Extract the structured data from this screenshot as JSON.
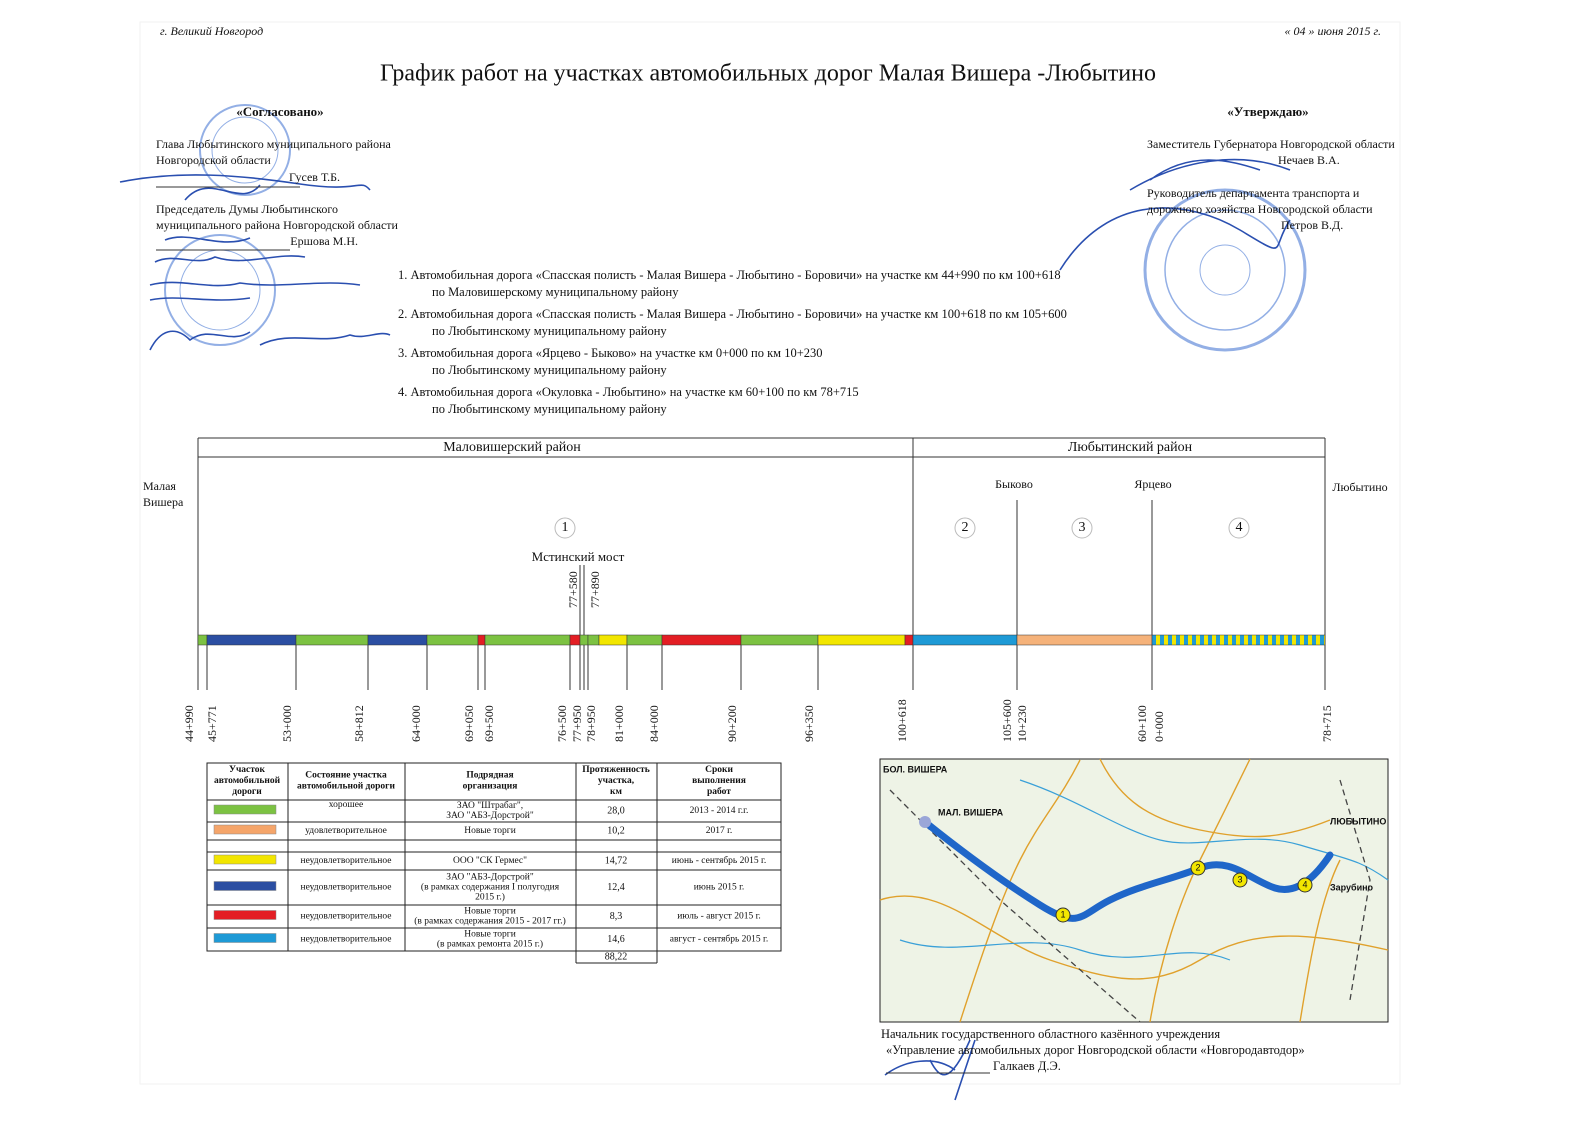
{
  "header": {
    "city": "г. Великий Новгород",
    "date": "« 04 » июня 2015 г.",
    "title": "График работ на участках автомобильных дорог Малая Вишера -Любытино"
  },
  "approved_left": {
    "heading": "«Согласовано»",
    "lines": [
      "Глава Любытинского муниципального района",
      "Новгородской области",
      "Гусев Т.Б.",
      "Председатель Думы Любытинского",
      "муниципального района Новгородской области",
      "Ершова М.Н."
    ]
  },
  "approved_right": {
    "heading": "«Утверждаю»",
    "lines": [
      "Заместитель Губернатора Новгородской области",
      "Нечаев В.А.",
      "Руководитель департамента транспорта и",
      "дорожного хозяйства Новгородской области",
      "Петров В.Д."
    ]
  },
  "roads": [
    [
      "1. Автомобильная дорога «Спасская полисть - Малая Вишера - Любытино - Боровичи» на участке  км 44+990 по  км 100+618",
      "по Маловишерскому муниципальному району"
    ],
    [
      "2. Автомобильная дорога  «Спасская полисть - Малая Вишера - Любытино - Боровичи» на участке  км 100+618 по  км 105+600",
      "по Любытинскому муниципальному району"
    ],
    [
      "3. Автомобильная дорога  «Ярцево - Быково» на участке  км  0+000  по км  10+230",
      "по Любытинскому муниципальному району"
    ],
    [
      "4. Автомобильная дорога  «Окуловка - Любытино» на участке  км 60+100 по км  78+715",
      "по Любытинскому муниципальному району"
    ]
  ],
  "diagram": {
    "districts": [
      "Маловишерский район",
      "Любытинский район"
    ],
    "start_place": [
      "Малая",
      "Вишера"
    ],
    "places": [
      "Быково",
      "Ярцево",
      "Любытино"
    ],
    "sections": [
      "1",
      "2",
      "3",
      "4"
    ],
    "bridge": "Мстинский мост",
    "bridge_km": [
      "77+580",
      "77+890"
    ],
    "km": [
      "44+990",
      "45+771",
      "53+000",
      "58+812",
      "64+000",
      "69+050",
      "69+500",
      "76+500",
      "77+950",
      "78+950",
      "81+000",
      "84+000",
      "90+200",
      "96+350",
      "100+618",
      "105+600",
      "10+230",
      "60+100",
      "0+000",
      "78+715"
    ]
  },
  "table": {
    "headers": [
      [
        "Участок",
        "автомобильной",
        "дороги"
      ],
      [
        "Состояние участка",
        "автомобильной дороги"
      ],
      [
        "Подрядная",
        "организация"
      ],
      [
        "Протяженность",
        "участка,",
        "км"
      ],
      [
        "Сроки",
        "выполнения",
        "работ"
      ]
    ],
    "rows": [
      {
        "color": "#7cc242",
        "state": "хорошее",
        "contractor": [
          "ЗАО \"Штрабаг\",",
          "ЗАО \"АБЗ-Дорстрой\""
        ],
        "length": "28,0",
        "term": "2013 - 2014 г.г."
      },
      {
        "color": "#f5a56a",
        "state": "удовлетворительное",
        "contractor": [
          "Новые торги"
        ],
        "length": "10,2",
        "term": "2017 г."
      },
      {
        "color": "#f2e600",
        "state": "неудовлетворительное",
        "contractor": [
          "ООО \"СК Гермес\""
        ],
        "length": "14,72",
        "term": "июнь - сентябрь  2015 г."
      },
      {
        "color": "#2b4ea2",
        "state": "неудовлетворительное",
        "contractor": [
          "ЗАО \"АБЗ-Дорстрой\"",
          "(в рамках содержания I полугодия",
          "2015 г.)"
        ],
        "length": "12,4",
        "term": "июнь 2015 г."
      },
      {
        "color": "#e31e24",
        "state": "неудовлетворительное",
        "contractor": [
          "Новые торги",
          "(в рамках содержания 2015 - 2017 гг.)"
        ],
        "length": "8,3",
        "term": "июль - август 2015 г."
      },
      {
        "color": "#1e9ad6",
        "state": "неудовлетворительное",
        "contractor": [
          "Новые торги",
          "(в рамках ремонта 2015 г.)"
        ],
        "length": "14,6",
        "term": "август - сентябрь 2015 г."
      }
    ],
    "total": "88,22"
  },
  "map": {
    "labels": [
      "БОЛ. ВИШЕРА",
      "МАЛ. ВИШЕРА",
      "ЛЮБЫТИНО",
      "Зарубино"
    ],
    "markers": [
      "1",
      "2",
      "3",
      "4"
    ]
  },
  "footer": {
    "lines": [
      "Начальник государственного областного казённого учреждения",
      "«Управление автомобильных дорог Новгородской области «Новгородавтодор»",
      "Галкаев Д.Э."
    ]
  }
}
